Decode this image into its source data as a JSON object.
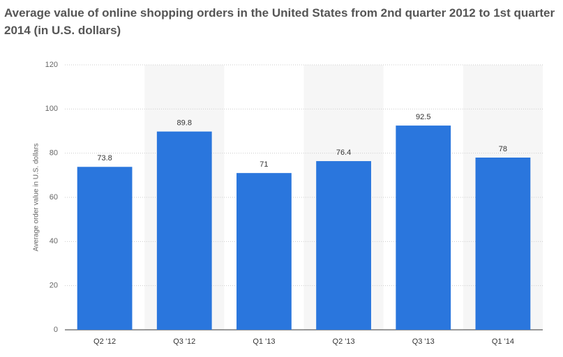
{
  "chart_data": {
    "type": "bar",
    "title": "Average value of online shopping orders in the United States from 2nd quarter 2012 to 1st quarter 2014 (in U.S. dollars)",
    "y_label": "Average order value in U.S. dollars",
    "categories": [
      "Q2 '12",
      "Q3 '12",
      "Q1 '13",
      "Q2 '13",
      "Q3 '13",
      "Q1 '14"
    ],
    "values": [
      73.8,
      89.8,
      71,
      76.4,
      92.5,
      78
    ],
    "color": "#2a76dd",
    "ylim": [
      0,
      120
    ],
    "yticks": [
      0,
      20,
      40,
      60,
      80,
      100,
      120
    ],
    "grid": true
  }
}
